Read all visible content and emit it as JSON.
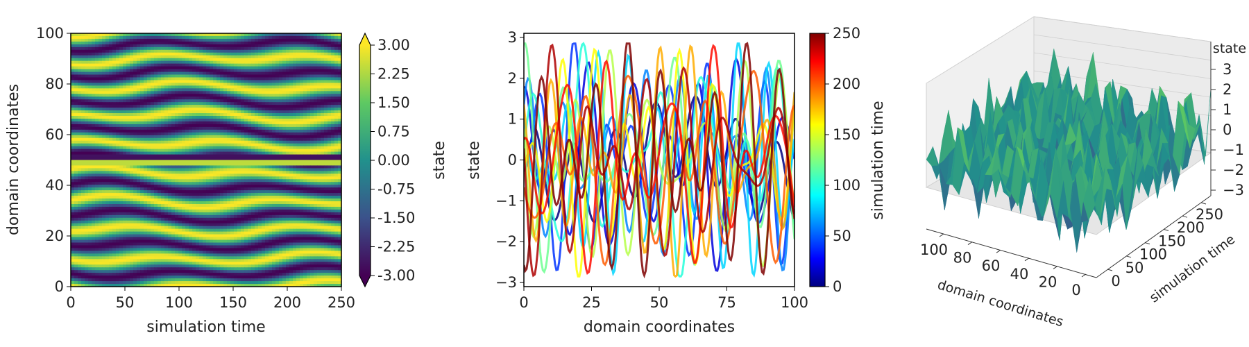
{
  "chart_data": [
    {
      "type": "heatmap",
      "xlabel": "simulation time",
      "ylabel": "domain coordinates",
      "xlim": [
        0,
        250
      ],
      "ylim": [
        0,
        100
      ],
      "xticks": [
        0,
        50,
        100,
        150,
        200,
        250
      ],
      "yticks": [
        0,
        20,
        40,
        60,
        80,
        100
      ],
      "colormap": "viridis",
      "colorbar": {
        "label": "state",
        "range": [
          -3.0,
          3.0
        ],
        "ticks": [
          "3.00",
          "2.25",
          "1.50",
          "0.75",
          "0.00",
          "-0.75",
          "-1.50",
          "-2.25",
          "-3.00"
        ],
        "extend": "both"
      },
      "horizontal_band_at": 50
    },
    {
      "type": "line",
      "xlabel": "domain coordinates",
      "ylabel": "state",
      "xlim": [
        0,
        100
      ],
      "ylim": [
        -3.1,
        3.1
      ],
      "xticks": [
        0,
        25,
        50,
        75,
        100
      ],
      "yticks": [
        -3,
        -2,
        -1,
        0,
        1,
        2,
        3
      ],
      "colormap": "jet",
      "colorbar": {
        "label": "simulation time",
        "range": [
          0,
          250
        ],
        "ticks": [
          0,
          50,
          100,
          150,
          200,
          250
        ]
      },
      "series_times": [
        0,
        20,
        40,
        60,
        80,
        100,
        120,
        140,
        160,
        180,
        200,
        220,
        240,
        250
      ]
    },
    {
      "type": "surface3d",
      "xlabel": "domain coordinates",
      "ylabel": "simulation time",
      "zlabel": "state",
      "xticks": [
        100,
        80,
        60,
        40,
        20,
        0
      ],
      "yticks": [
        0,
        50,
        100,
        150,
        200,
        250
      ],
      "zticks": [
        "3",
        "2",
        "1",
        "0",
        "−1",
        "−2",
        "−3"
      ],
      "colormap": "viridis"
    }
  ]
}
